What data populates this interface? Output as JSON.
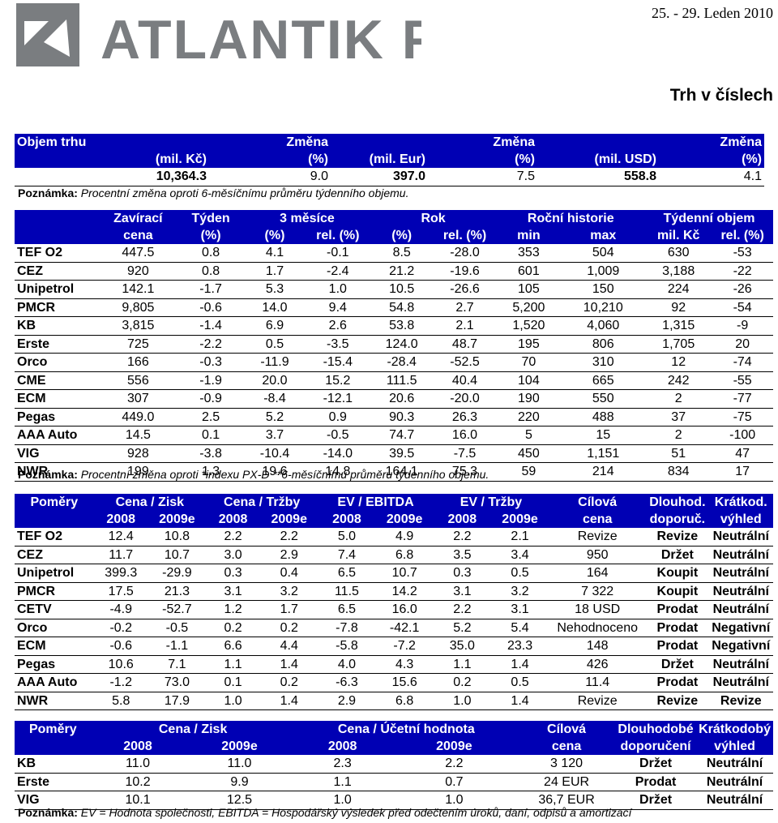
{
  "header": {
    "company": "ATLANTIK FT",
    "date": "25. - 29. Leden 2010",
    "title": "Trh v číslech"
  },
  "market_volume": {
    "h1": [
      "Objem trhu",
      "",
      "Změna",
      "",
      "Změna",
      "",
      "Změna"
    ],
    "h2": [
      "",
      "(mil. Kč)",
      "(%)",
      "(mil. Eur)",
      "(%)",
      "(mil. USD)",
      "(%)"
    ],
    "values": [
      "10,364.3",
      "9.0",
      "397.0",
      "7.5",
      "558.8",
      "4.1"
    ],
    "note_label": "Poznámka:",
    "note_text": " Procentní změna oproti 6-měsíčnímu průměru týdenního objemu."
  },
  "stock_table": {
    "h1": [
      "",
      "Zavírací",
      "Týden",
      "3 měsíce",
      "Rok",
      "Roční historie",
      "Týdenní objem"
    ],
    "h2": [
      "",
      "cena",
      "(%)",
      "(%)",
      "rel. (%)",
      "(%)",
      "rel. (%)",
      "min",
      "max",
      "mil. Kč",
      "rel. (%)"
    ],
    "rows": [
      [
        "TEF O2",
        "447.5",
        "0.8",
        "4.1",
        "-0.1",
        "8.5",
        "-28.0",
        "353",
        "504",
        "630",
        "-53"
      ],
      [
        "CEZ",
        "920",
        "0.8",
        "1.7",
        "-2.4",
        "21.2",
        "-19.6",
        "601",
        "1,009",
        "3,188",
        "-22"
      ],
      [
        "Unipetrol",
        "142.1",
        "-1.7",
        "5.3",
        "1.0",
        "10.5",
        "-26.6",
        "105",
        "150",
        "224",
        "-26"
      ],
      [
        "PMCR",
        "9,805",
        "-0.6",
        "14.0",
        "9.4",
        "54.8",
        "2.7",
        "5,200",
        "10,210",
        "92",
        "-54"
      ],
      [
        "KB",
        "3,815",
        "-1.4",
        "6.9",
        "2.6",
        "53.8",
        "2.1",
        "1,520",
        "4,060",
        "1,315",
        "-9"
      ],
      [
        "Erste",
        "725",
        "-2.2",
        "0.5",
        "-3.5",
        "124.0",
        "48.7",
        "195",
        "806",
        "1,705",
        "20"
      ],
      [
        "Orco",
        "166",
        "-0.3",
        "-11.9",
        "-15.4",
        "-28.4",
        "-52.5",
        "70",
        "310",
        "12",
        "-74"
      ],
      [
        "CME",
        "556",
        "-1.9",
        "20.0",
        "15.2",
        "111.5",
        "40.4",
        "104",
        "665",
        "242",
        "-55"
      ],
      [
        "ECM",
        "307",
        "-0.9",
        "-8.4",
        "-12.1",
        "20.6",
        "-20.0",
        "190",
        "550",
        "2",
        "-77"
      ],
      [
        "Pegas",
        "449.0",
        "2.5",
        "5.2",
        "0.9",
        "90.3",
        "26.3",
        "220",
        "488",
        "37",
        "-75"
      ],
      [
        "AAA Auto",
        "14.5",
        "0.1",
        "3.7",
        "-0.5",
        "74.7",
        "16.0",
        "5",
        "15",
        "2",
        "-100"
      ],
      [
        "VIG",
        "928",
        "-3.8",
        "-10.4",
        "-14.0",
        "39.5",
        "-7.5",
        "450",
        "1,151",
        "51",
        "47"
      ],
      [
        "NWR",
        "199",
        "1.3",
        "19.6",
        "14.8",
        "164.1",
        "75.3",
        "59",
        "214",
        "834",
        "17"
      ]
    ],
    "note_label": "Poznámka:",
    "note_text": " Procentní změna oproti *indexu PX-D **6-měsíčnímu průměru týdenního objemu."
  },
  "ratios_table": {
    "h1": [
      "Poměry",
      "Cena / Zisk",
      "Cena / Tržby",
      "EV / EBITDA",
      "EV / Tržby",
      "Cílová",
      "Dlouhod.",
      "Krátkod."
    ],
    "h2": [
      "",
      "2008",
      "2009e",
      "2008",
      "2009e",
      "2008",
      "2009e",
      "2008",
      "2009e",
      "cena",
      "doporuč.",
      "výhled"
    ],
    "rows": [
      [
        "TEF O2",
        "12.4",
        "10.8",
        "2.2",
        "2.2",
        "5.0",
        "4.9",
        "2.2",
        "2.1",
        "Revize",
        "Revize",
        "Neutrální"
      ],
      [
        "CEZ",
        "11.7",
        "10.7",
        "3.0",
        "2.9",
        "7.4",
        "6.8",
        "3.5",
        "3.4",
        "950",
        "Držet",
        "Neutrální"
      ],
      [
        "Unipetrol",
        "399.3",
        "-29.9",
        "0.3",
        "0.4",
        "6.5",
        "10.7",
        "0.3",
        "0.5",
        "164",
        "Koupit",
        "Neutrální"
      ],
      [
        "PMCR",
        "17.5",
        "21.3",
        "3.1",
        "3.2",
        "11.5",
        "14.2",
        "3.1",
        "3.2",
        "7 322",
        "Koupit",
        "Neutrální"
      ],
      [
        "CETV",
        "-4.9",
        "-52.7",
        "1.2",
        "1.7",
        "6.5",
        "16.0",
        "2.2",
        "3.1",
        "18 USD",
        "Prodat",
        "Neutrální"
      ],
      [
        "Orco",
        "-0.2",
        "-0.5",
        "0.2",
        "0.2",
        "-7.8",
        "-42.1",
        "5.2",
        "5.4",
        "Nehodnoceno",
        "Prodat",
        "Negativní"
      ],
      [
        "ECM",
        "-0.6",
        "-1.1",
        "6.6",
        "4.4",
        "-5.8",
        "-7.2",
        "35.0",
        "23.3",
        "148",
        "Prodat",
        "Negativní"
      ],
      [
        "Pegas",
        "10.6",
        "7.1",
        "1.1",
        "1.4",
        "4.0",
        "4.3",
        "1.1",
        "1.4",
        "426",
        "Držet",
        "Neutrální"
      ],
      [
        "AAA Auto",
        "-1.2",
        "73.0",
        "0.1",
        "0.2",
        "-6.3",
        "15.6",
        "0.2",
        "0.5",
        "11.4",
        "Prodat",
        "Neutrální"
      ],
      [
        "NWR",
        "5.8",
        "17.9",
        "1.0",
        "1.4",
        "2.9",
        "6.8",
        "1.0",
        "1.4",
        "Revize",
        "Revize",
        "Revize"
      ]
    ]
  },
  "banks_table": {
    "h1": [
      "Poměry",
      "Cena / Zisk",
      "Cena / Účetní hodnota",
      "Cílová",
      "Dlouhodobé",
      "Krátkodobý"
    ],
    "h2": [
      "",
      "2008",
      "2009e",
      "2008",
      "2009e",
      "cena",
      "doporučení",
      "výhled"
    ],
    "rows": [
      [
        "KB",
        "11.0",
        "11.0",
        "2.3",
        "2.2",
        "3 120",
        "Držet",
        "Neutrální"
      ],
      [
        "Erste",
        "10.2",
        "9.9",
        "1.1",
        "0.7",
        "24 EUR",
        "Prodat",
        "Neutrální"
      ],
      [
        "VIG",
        "10.1",
        "12.5",
        "1.0",
        "1.0",
        "36,7 EUR",
        "Držet",
        "Neutrální"
      ]
    ],
    "note_label": "Poznámka:",
    "note_text": " EV = Hodnota společnosti, EBITDA = Hospodářský výsledek před odečtením úroků, daní, odpisů a amortizací"
  },
  "colors": {
    "header_bg": "#0000b4",
    "header_text": "#ffffff",
    "logo_gray": "#7a7d80"
  }
}
